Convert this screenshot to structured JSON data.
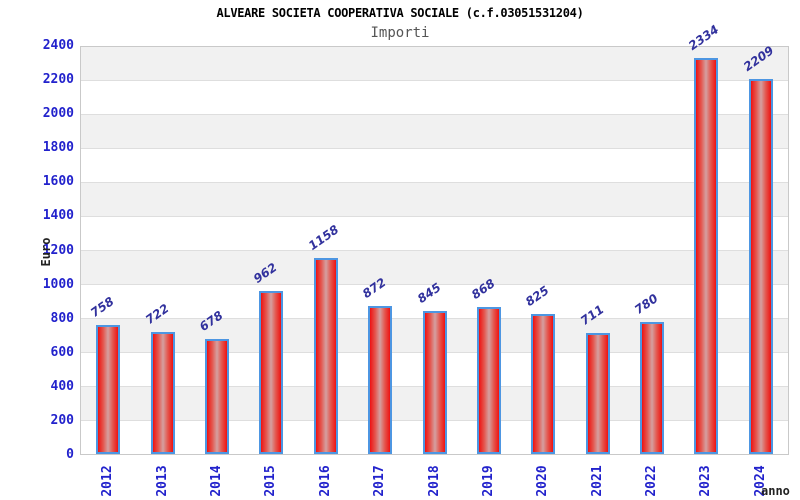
{
  "chart_data": {
    "type": "bar",
    "title": "ALVEARE SOCIETA COOPERATIVA SOCIALE (c.f.03051531204)",
    "subtitle": "Importi",
    "xlabel": "anno",
    "ylabel": "Euro",
    "categories": [
      "2012",
      "2013",
      "2014",
      "2015",
      "2016",
      "2017",
      "2018",
      "2019",
      "2020",
      "2021",
      "2022",
      "2023",
      "2024"
    ],
    "values": [
      758,
      722,
      678,
      962,
      1158,
      872,
      845,
      868,
      825,
      711,
      780,
      2334,
      2209
    ],
    "ylim": [
      0,
      2400
    ],
    "ytick_step": 200,
    "legend_position": "none",
    "grid": "alternating horizontal bands (gray/white) every 200 with light gridlines",
    "value_labels": "above each bar, rotated ~35deg",
    "colors": {
      "tick_label": "#2222cc",
      "value_label": "#31319d",
      "bar_fill_edge": "#ee1212",
      "bar_fill_center": "#d4a0a0",
      "bar_border": "#4d96e2",
      "band_gray": "#f1f1f1",
      "band_white": "#ffffff",
      "title": "#000000",
      "subtitle": "#555555",
      "axis_title": "#222222"
    }
  }
}
